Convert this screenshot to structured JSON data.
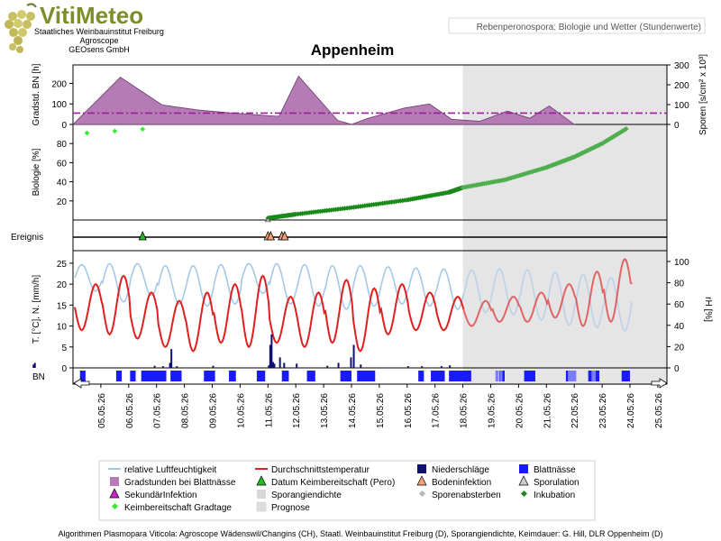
{
  "header": {
    "logo_text": "VitiMeteo",
    "org_line1": "Staatliches Weinbauinstitut Freiburg",
    "org_line2": "Agroscope",
    "org_line3": "GEOsens GmbH",
    "subtitle_box": "Rebenperonospora: Biologie und Wetter (Stundenwerte)",
    "location": "Appenheim"
  },
  "colors": {
    "degree_hours_fill": "#b57bb5",
    "threshold_line": "#9a1c9a",
    "biology_points": "#1a8a1a",
    "biology_forecast_points": "#4fae4f",
    "germination_points": "#33ee33",
    "humidity_line": "#a6c8e8",
    "temperature_line": "#e02020",
    "precipitation_bars": "#101070",
    "leaf_wetness": "#1a1aff",
    "forecast_shade": "#dcdcdc"
  },
  "chart_data": {
    "type": "line",
    "x": [
      "05.05.26",
      "06.05.26",
      "07.05.26",
      "08.05.26",
      "09.05.26",
      "10.05.26",
      "11.05.26",
      "12.05.26",
      "13.05.26",
      "14.05.26",
      "15.05.26",
      "16.05.26",
      "17.05.26",
      "18.05.26",
      "19.05.26",
      "20.05.26",
      "21.05.26",
      "22.05.26",
      "23.05.26",
      "24.05.26",
      "25.05.26"
    ],
    "forecast_from": "18.05.26",
    "panels": {
      "degree_hours": {
        "ylabel_left": "Gradstd. BN [h]",
        "ylabel_right": "Sporen [s/cm² x 10³]",
        "yticks_left": [
          "0",
          "100",
          "200"
        ],
        "yticks_right": [
          "0",
          "100",
          "200",
          "300"
        ],
        "ylim_left": [
          0,
          290
        ],
        "ylim_right": [
          0,
          300
        ],
        "threshold": 55,
        "series": [
          {
            "x": 4.0,
            "y": 0
          },
          {
            "x": 5.7,
            "y": 230
          },
          {
            "x": 7.2,
            "y": 95
          },
          {
            "x": 8.5,
            "y": 70
          },
          {
            "x": 9.5,
            "y": 58
          },
          {
            "x": 11.3,
            "y": 40
          },
          {
            "x": 11.4,
            "y": 40
          },
          {
            "x": 12.1,
            "y": 235
          },
          {
            "x": 13.5,
            "y": 20
          },
          {
            "x": 14.0,
            "y": 0
          },
          {
            "x": 14.6,
            "y": 30
          },
          {
            "x": 15.9,
            "y": 80
          },
          {
            "x": 16.8,
            "y": 100
          },
          {
            "x": 17.6,
            "y": 25
          },
          {
            "x": 18.6,
            "y": 15
          },
          {
            "x": 19.6,
            "y": 65
          },
          {
            "x": 20.4,
            "y": 30
          },
          {
            "x": 21.1,
            "y": 90
          },
          {
            "x": 22.0,
            "y": 0
          }
        ]
      },
      "biology": {
        "ylabel": "Biologie [%]",
        "yticks": [
          "20",
          "40",
          "60",
          "80"
        ],
        "ylim": [
          0,
          100
        ],
        "germination_readiness_points": [
          {
            "x": 4.5,
            "y": 91
          },
          {
            "x": 5.5,
            "y": 93
          },
          {
            "x": 6.5,
            "y": 95
          }
        ],
        "incubation_start": {
          "x": 11.0,
          "y": 2
        },
        "incubation_segments": [
          {
            "x": 11.0,
            "y": 2
          },
          {
            "x": 12.0,
            "y": 6
          },
          {
            "x": 14.0,
            "y": 13
          },
          {
            "x": 16.0,
            "y": 21
          },
          {
            "x": 17.5,
            "y": 29
          },
          {
            "x": 18.0,
            "y": 34
          },
          {
            "x": 19.5,
            "y": 42
          },
          {
            "x": 21.0,
            "y": 55
          },
          {
            "x": 22.0,
            "y": 66
          },
          {
            "x": 23.0,
            "y": 80
          },
          {
            "x": 23.9,
            "y": 96
          }
        ]
      },
      "events": {
        "label": "Ereignis",
        "primary_infection": [
          {
            "x": 6.5
          }
        ],
        "soil_infection": [
          {
            "x": 11.0
          },
          {
            "x": 11.1
          },
          {
            "x": 11.5
          },
          {
            "x": 11.6
          }
        ]
      },
      "weather": {
        "ylabel_left": "T. [°C], N. [mm/h]",
        "ylabel_right": "rH [%]",
        "yticks_left": [
          "0",
          "5",
          "10",
          "15",
          "20",
          "25"
        ],
        "yticks_right": [
          "0",
          "20",
          "40",
          "60",
          "80",
          "100"
        ],
        "ylim_left": [
          0,
          28
        ],
        "ylim_right": [
          0,
          100
        ],
        "temperature_daily": [
          {
            "day": 0,
            "min": 9,
            "max": 20
          },
          {
            "day": 1,
            "min": 8,
            "max": 22
          },
          {
            "day": 2,
            "min": 7,
            "max": 18
          },
          {
            "day": 3,
            "min": 5,
            "max": 16
          },
          {
            "day": 4,
            "min": 4,
            "max": 18
          },
          {
            "day": 5,
            "min": 6,
            "max": 20
          },
          {
            "day": 6,
            "min": 5,
            "max": 22
          },
          {
            "day": 7,
            "min": 6,
            "max": 17
          },
          {
            "day": 8,
            "min": 5,
            "max": 18
          },
          {
            "day": 9,
            "min": 6,
            "max": 21
          },
          {
            "day": 10,
            "min": 4,
            "max": 19
          },
          {
            "day": 11,
            "min": 8,
            "max": 20
          },
          {
            "day": 12,
            "min": 9,
            "max": 18
          },
          {
            "day": 13,
            "min": 9,
            "max": 17
          },
          {
            "day": 14,
            "min": 10,
            "max": 16
          },
          {
            "day": 15,
            "min": 11,
            "max": 17
          },
          {
            "day": 16,
            "min": 11,
            "max": 18
          },
          {
            "day": 17,
            "min": 12,
            "max": 20
          },
          {
            "day": 18,
            "min": 10,
            "max": 23
          },
          {
            "day": 19,
            "min": 11,
            "max": 26
          },
          {
            "day": 20,
            "min": 12,
            "max": 28
          }
        ],
        "humidity_daily": [
          {
            "day": 0,
            "min": 72,
            "max": 97
          },
          {
            "day": 1,
            "min": 62,
            "max": 98
          },
          {
            "day": 2,
            "min": 68,
            "max": 98
          },
          {
            "day": 3,
            "min": 60,
            "max": 96
          },
          {
            "day": 4,
            "min": 58,
            "max": 96
          },
          {
            "day": 5,
            "min": 60,
            "max": 97
          },
          {
            "day": 6,
            "min": 70,
            "max": 98
          },
          {
            "day": 7,
            "min": 60,
            "max": 98
          },
          {
            "day": 8,
            "min": 58,
            "max": 97
          },
          {
            "day": 9,
            "min": 55,
            "max": 96
          },
          {
            "day": 10,
            "min": 58,
            "max": 96
          },
          {
            "day": 11,
            "min": 60,
            "max": 95
          },
          {
            "day": 12,
            "min": 58,
            "max": 94
          },
          {
            "day": 13,
            "min": 55,
            "max": 93
          },
          {
            "day": 14,
            "min": 52,
            "max": 92
          },
          {
            "day": 15,
            "min": 50,
            "max": 93
          },
          {
            "day": 16,
            "min": 45,
            "max": 92
          },
          {
            "day": 17,
            "min": 40,
            "max": 90
          },
          {
            "day": 18,
            "min": 38,
            "max": 88
          },
          {
            "day": 19,
            "min": 35,
            "max": 85
          },
          {
            "day": 20,
            "min": 36,
            "max": 88
          }
        ],
        "precipitation": [
          {
            "x": 2.55,
            "y": 0.8
          },
          {
            "x": 2.6,
            "y": 1.2
          },
          {
            "x": 6.9,
            "y": 0.5
          },
          {
            "x": 7.2,
            "y": 0.4
          },
          {
            "x": 7.45,
            "y": 1.2
          },
          {
            "x": 7.5,
            "y": 4.5
          },
          {
            "x": 7.7,
            "y": 0.4
          },
          {
            "x": 9.0,
            "y": 0.5
          },
          {
            "x": 11.0,
            "y": 0.6
          },
          {
            "x": 11.05,
            "y": 5.5
          },
          {
            "x": 11.1,
            "y": 8.0
          },
          {
            "x": 11.15,
            "y": 1.4
          },
          {
            "x": 11.2,
            "y": 1.0
          },
          {
            "x": 11.4,
            "y": 2.5
          },
          {
            "x": 11.55,
            "y": 1.2
          },
          {
            "x": 12.0,
            "y": 1.0
          },
          {
            "x": 13.1,
            "y": 0.5
          },
          {
            "x": 13.5,
            "y": 1.2
          },
          {
            "x": 13.95,
            "y": 2.5
          },
          {
            "x": 14.05,
            "y": 5.5
          },
          {
            "x": 14.3,
            "y": 0.8
          },
          {
            "x": 16.0,
            "y": 0.4
          },
          {
            "x": 16.5,
            "y": 0.4
          },
          {
            "x": 17.2,
            "y": 0.4
          },
          {
            "x": 17.5,
            "y": 0.6
          }
        ]
      },
      "leaf_wetness": {
        "label": "BN",
        "intervals": [
          [
            0.25,
            0.45
          ],
          [
            1.55,
            1.75
          ],
          [
            2.05,
            2.25
          ],
          [
            2.45,
            3.35
          ],
          [
            3.5,
            3.9
          ],
          [
            4.7,
            5.1
          ],
          [
            5.6,
            5.85
          ],
          [
            6.6,
            6.9
          ],
          [
            7.5,
            7.75
          ],
          [
            8.4,
            8.7
          ],
          [
            9.6,
            10.0
          ],
          [
            10.2,
            10.85
          ],
          [
            12.4,
            12.6
          ],
          [
            12.85,
            13.35
          ],
          [
            13.5,
            14.3
          ],
          [
            15.3,
            15.5
          ],
          [
            16.2,
            16.6
          ],
          [
            17.7,
            18.0
          ],
          [
            18.5,
            18.9
          ],
          [
            19.7,
            20.0
          ]
        ],
        "forecast_intervals": [
          [
            12.2,
            12.3
          ],
          [
            12.35,
            12.45
          ],
          [
            14.8,
            15.1
          ],
          [
            15.65,
            15.8
          ]
        ]
      }
    }
  },
  "legend": {
    "items": [
      {
        "label": "relative Luftfeuchtigkeit",
        "marker": "line",
        "color": "#a6c8e8"
      },
      {
        "label": "Gradstunden bei Blattnässe",
        "marker": "square",
        "color": "#b57bb5"
      },
      {
        "label": "SekundärInfektion",
        "marker": "triangle",
        "color": "#cc22cc"
      },
      {
        "label": "Keimbereitschaft Gradtage",
        "marker": "diamond",
        "color": "#33ee33"
      },
      {
        "label": "Durchschnittstemperatur",
        "marker": "line",
        "color": "#e02020"
      },
      {
        "label": "Datum Keimbereitschaft (Pero)",
        "marker": "triangle",
        "color": "#22bb22"
      },
      {
        "label": "Sporangiendichte",
        "marker": "square",
        "color": "#d8d8d8"
      },
      {
        "label": "Prognose",
        "marker": "square",
        "color": "#dcdcdc"
      },
      {
        "label": "Niederschläge",
        "marker": "square",
        "color": "#101070"
      },
      {
        "label": "Bodeninfektion",
        "marker": "triangle",
        "color": "#f2a07a"
      },
      {
        "label": "Sporenabsterben",
        "marker": "diamond",
        "color": "#b8b8b8"
      },
      {
        "label": "Blattnässe",
        "marker": "square",
        "color": "#1a1aff"
      },
      {
        "label": "Sporulation",
        "marker": "triangle",
        "color": "#cccccc"
      },
      {
        "label": "Inkubation",
        "marker": "diamond",
        "color": "#1a8a1a"
      }
    ]
  },
  "footer": {
    "text": "Algorithmen Plasmopara Viticola: Agroscope Wädenswil/Changins (CH), Staatl. Weinbauinstitut Freiburg (D), Sporangiendichte, Keimdauer: G. Hill, DLR Oppenheim (D)"
  }
}
